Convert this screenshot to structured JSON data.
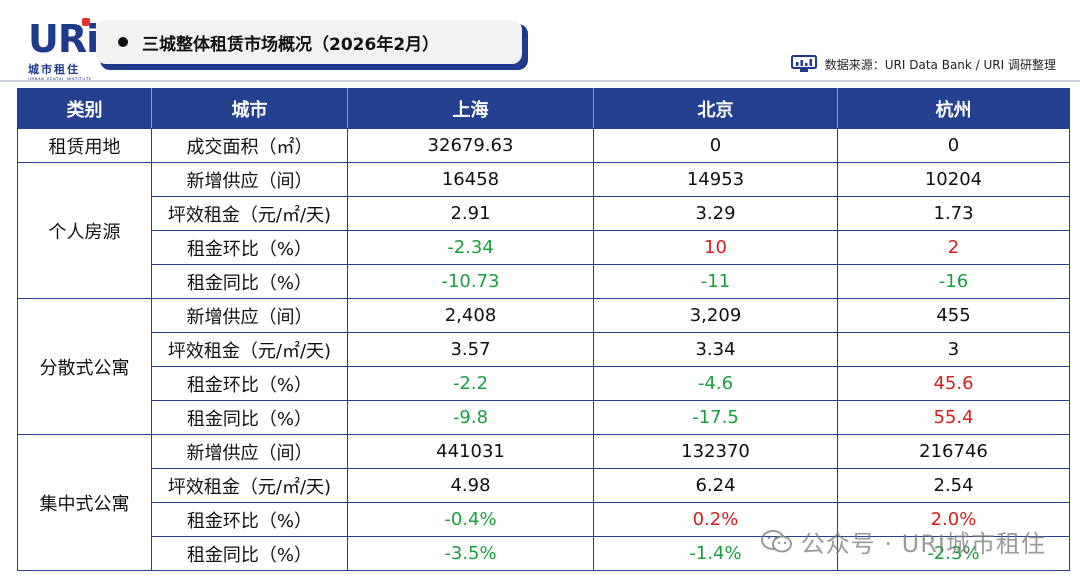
{
  "logo": {
    "text": "URi",
    "cn": "城市租住",
    "en": "URBAN RENTAL INSTITUTE"
  },
  "title": "三城整体租赁市场概况（2026年2月）",
  "source": "数据来源：URI Data Bank / URI 调研整理",
  "watermark": "公众号 · URI城市租住",
  "colors": {
    "header_bg": "#24408e",
    "positive": "#d12020",
    "negative": "#1a9e3f"
  },
  "table": {
    "headers": [
      "类别",
      "城市",
      "上海",
      "北京",
      "杭州"
    ],
    "groups": [
      {
        "category": "租赁用地",
        "rows": [
          {
            "metric": "成交面积（㎡）",
            "values": [
              "32679.63",
              "0",
              "0"
            ],
            "colors": [
              "black",
              "black",
              "black"
            ]
          }
        ]
      },
      {
        "category": "个人房源",
        "rows": [
          {
            "metric": "新增供应（间）",
            "values": [
              "16458",
              "14953",
              "10204"
            ],
            "colors": [
              "black",
              "black",
              "black"
            ]
          },
          {
            "metric": "坪效租金（元/㎡/天)",
            "values": [
              "2.91",
              "3.29",
              "1.73"
            ],
            "colors": [
              "black",
              "black",
              "black"
            ]
          },
          {
            "metric": "租金环比（%）",
            "values": [
              "-2.34",
              "10",
              "2"
            ],
            "colors": [
              "green",
              "red",
              "red"
            ]
          },
          {
            "metric": "租金同比（%）",
            "values": [
              "-10.73",
              "-11",
              "-16"
            ],
            "colors": [
              "green",
              "green",
              "green"
            ]
          }
        ]
      },
      {
        "category": "分散式公寓",
        "rows": [
          {
            "metric": "新增供应（间）",
            "values": [
              "2,408",
              "3,209",
              "455"
            ],
            "colors": [
              "black",
              "black",
              "black"
            ]
          },
          {
            "metric": "坪效租金（元/㎡/天)",
            "values": [
              "3.57",
              "3.34",
              "3"
            ],
            "colors": [
              "black",
              "black",
              "black"
            ]
          },
          {
            "metric": "租金环比（%）",
            "values": [
              "-2.2",
              "-4.6",
              "45.6"
            ],
            "colors": [
              "green",
              "green",
              "red"
            ]
          },
          {
            "metric": "租金同比（%）",
            "values": [
              "-9.8",
              "-17.5",
              "55.4"
            ],
            "colors": [
              "green",
              "green",
              "red"
            ]
          }
        ]
      },
      {
        "category": "集中式公寓",
        "rows": [
          {
            "metric": "新增供应（间）",
            "values": [
              "441031",
              "132370",
              "216746"
            ],
            "colors": [
              "black",
              "black",
              "black"
            ]
          },
          {
            "metric": "坪效租金（元/㎡/天)",
            "values": [
              "4.98",
              "6.24",
              "2.54"
            ],
            "colors": [
              "black",
              "black",
              "black"
            ]
          },
          {
            "metric": "租金环比（%）",
            "values": [
              "-0.4%",
              "0.2%",
              "2.0%"
            ],
            "colors": [
              "green",
              "red",
              "red"
            ]
          },
          {
            "metric": "租金同比（%）",
            "values": [
              "-3.5%",
              "-1.4%",
              "-2.3%"
            ],
            "colors": [
              "green",
              "green",
              "green"
            ]
          }
        ]
      }
    ]
  }
}
